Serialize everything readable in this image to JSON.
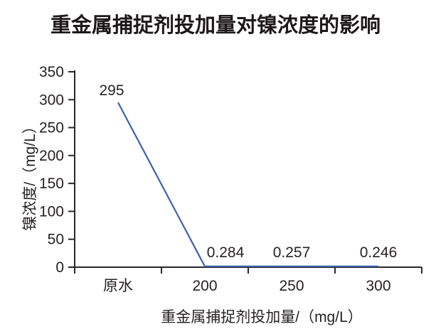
{
  "chart_data": {
    "type": "line",
    "title": "重金属捕捉剂投加量对镍浓度的影响",
    "xlabel": "重金属捕捉剂投加量/（mg/L）",
    "ylabel": "镍浓度/（mg/L）",
    "categories": [
      "原水",
      "200",
      "250",
      "300"
    ],
    "values": [
      295,
      0.284,
      0.257,
      0.246
    ],
    "point_labels": [
      "295",
      "0.284",
      "0.257",
      "0.246"
    ],
    "ylim": [
      0,
      350
    ],
    "yticks": [
      0,
      50,
      100,
      150,
      200,
      250,
      300,
      350
    ],
    "grid": false,
    "legend": null,
    "line_color": "#3b62ad",
    "axis_color": "#2b2728",
    "text_color": "#262223"
  }
}
